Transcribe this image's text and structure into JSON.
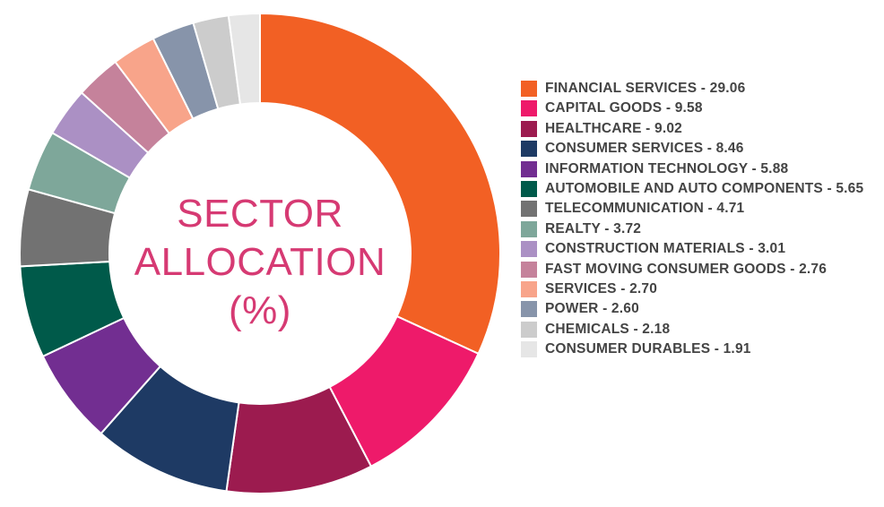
{
  "chart_data": {
    "type": "pie",
    "title_lines": [
      "SECTOR",
      "ALLOCATION",
      "(%)"
    ],
    "categories": [
      "FINANCIAL SERVICES",
      "CAPITAL GOODS",
      "HEALTHCARE",
      "CONSUMER SERVICES",
      "INFORMATION TECHNOLOGY",
      "AUTOMOBILE AND AUTO COMPONENTS",
      "TELECOMMUNICATION",
      "REALTY",
      "CONSTRUCTION MATERIALS",
      "FAST MOVING CONSUMER GOODS",
      "SERVICES",
      "POWER",
      "CHEMICALS",
      "CONSUMER DURABLES"
    ],
    "values": [
      29.06,
      9.58,
      9.02,
      8.46,
      5.88,
      5.65,
      4.71,
      3.72,
      3.01,
      2.76,
      2.7,
      2.6,
      2.18,
      1.91
    ],
    "value_labels": [
      "29.06",
      "9.58",
      "9.02",
      "8.46",
      "5.88",
      "5.65",
      "4.71",
      "3.72",
      "3.01",
      "2.76",
      "2.70",
      "2.60",
      "2.18",
      "1.91"
    ],
    "colors": [
      "#f26024",
      "#ee1a6a",
      "#9c1b4f",
      "#1e3a64",
      "#722e91",
      "#005a4a",
      "#727272",
      "#7ea79a",
      "#ab90c4",
      "#c5829b",
      "#f8a48a",
      "#8794aa",
      "#cccccc",
      "#e6e6e6"
    ],
    "legend_position": "right",
    "donut": true
  },
  "legend": {
    "items": [
      {
        "text": "FINANCIAL SERVICES - 29.06",
        "color": "#f26024"
      },
      {
        "text": "CAPITAL GOODS - 9.58",
        "color": "#ee1a6a"
      },
      {
        "text": "HEALTHCARE - 9.02",
        "color": "#9c1b4f"
      },
      {
        "text": "CONSUMER SERVICES - 8.46",
        "color": "#1e3a64"
      },
      {
        "text": "INFORMATION TECHNOLOGY - 5.88",
        "color": "#722e91"
      },
      {
        "text": "AUTOMOBILE AND AUTO COMPONENTS - 5.65",
        "color": "#005a4a"
      },
      {
        "text": "TELECOMMUNICATION - 4.71",
        "color": "#727272"
      },
      {
        "text": "REALTY - 3.72",
        "color": "#7ea79a"
      },
      {
        "text": "CONSTRUCTION MATERIALS - 3.01",
        "color": "#ab90c4"
      },
      {
        "text": "FAST MOVING CONSUMER GOODS - 2.76",
        "color": "#c5829b"
      },
      {
        "text": "SERVICES - 2.70",
        "color": "#f8a48a"
      },
      {
        "text": "POWER - 2.60",
        "color": "#8794aa"
      },
      {
        "text": "CHEMICALS - 2.18",
        "color": "#cccccc"
      },
      {
        "text": "CONSUMER DURABLES - 1.91",
        "color": "#e6e6e6"
      }
    ]
  }
}
